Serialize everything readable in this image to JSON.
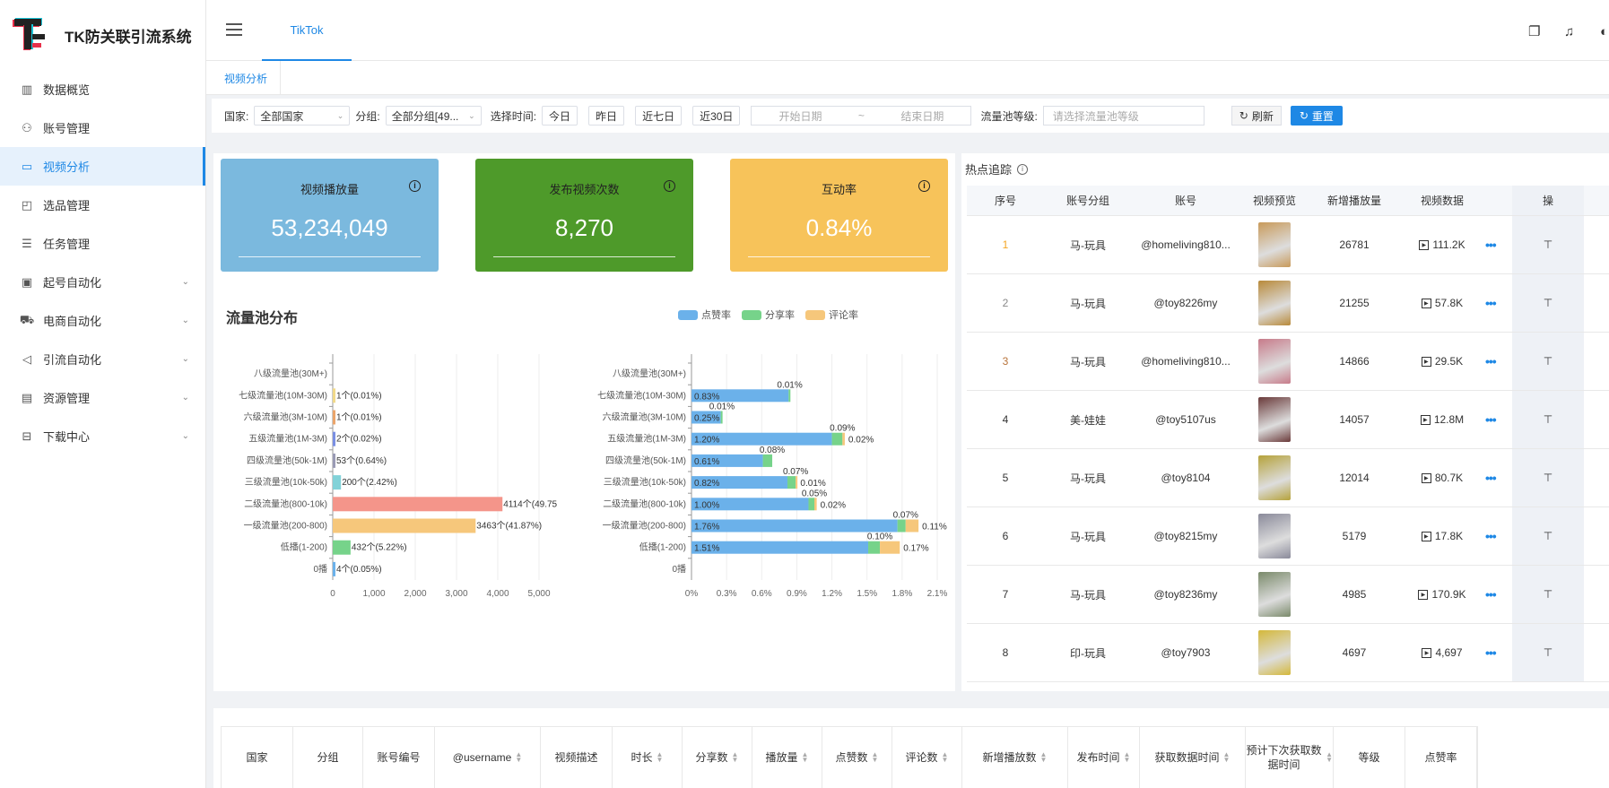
{
  "app": {
    "title": "TK防关联引流系统"
  },
  "sidebar": {
    "items": [
      {
        "label": "数据概览",
        "icon": "bar-chart-icon",
        "glyph": "▥",
        "expandable": false,
        "active": false
      },
      {
        "label": "账号管理",
        "icon": "user-group-icon",
        "glyph": "⚇",
        "expandable": false,
        "active": false
      },
      {
        "label": "视频分析",
        "icon": "video-icon",
        "glyph": "▭",
        "expandable": false,
        "active": true
      },
      {
        "label": "选品管理",
        "icon": "bag-icon",
        "glyph": "◰",
        "expandable": false,
        "active": false
      },
      {
        "label": "任务管理",
        "icon": "list-icon",
        "glyph": "☰",
        "expandable": false,
        "active": false
      },
      {
        "label": "起号自动化",
        "icon": "monitor-icon",
        "glyph": "▣",
        "expandable": true,
        "active": false
      },
      {
        "label": "电商自动化",
        "icon": "cart-icon",
        "glyph": "⛟",
        "expandable": true,
        "active": false
      },
      {
        "label": "引流自动化",
        "icon": "megaphone-icon",
        "glyph": "◁",
        "expandable": true,
        "active": false
      },
      {
        "label": "资源管理",
        "icon": "book-icon",
        "glyph": "▤",
        "expandable": true,
        "active": false
      },
      {
        "label": "下载中心",
        "icon": "inbox-icon",
        "glyph": "⊟",
        "expandable": true,
        "active": false
      }
    ]
  },
  "header": {
    "tab": "TikTok"
  },
  "subtabs": {
    "active": "视频分析"
  },
  "filters": {
    "country_label": "国家:",
    "country_value": "全部国家",
    "group_label": "分组:",
    "group_value": "全部分组[49...",
    "time_label": "选择时间:",
    "today": "今日",
    "yesterday": "昨日",
    "last7": "近七日",
    "last30": "近30日",
    "start_placeholder": "开始日期",
    "range_sep": "~",
    "end_placeholder": "结束日期",
    "pool_label": "流量池等级:",
    "pool_placeholder": "请选择流量池等级",
    "refresh": "刷新",
    "reset": "重置"
  },
  "kpis": [
    {
      "title": "视频播放量",
      "value": "53,234,049",
      "color": "#7bb9de"
    },
    {
      "title": "发布视频次数",
      "value": "8,270",
      "color": "#4e9a2a"
    },
    {
      "title": "互动率",
      "value": "0.84%",
      "color": "#f7c35a"
    }
  ],
  "distribution": {
    "title": "流量池分布",
    "legend": [
      {
        "name": "点赞率",
        "color": "#6bb1ea"
      },
      {
        "name": "分享率",
        "color": "#76d38a"
      },
      {
        "name": "评论率",
        "color": "#f6c77b"
      }
    ]
  },
  "chart_data": [
    {
      "type": "bar",
      "orientation": "horizontal",
      "categories": [
        "0播",
        "低播(1-200)",
        "一级流量池(200-800)",
        "二级流量池(800-10k)",
        "三级流量池(10k-50k)",
        "四级流量池(50k-1M)",
        "五级流量池(1M-3M)",
        "六级流量池(3M-10M)",
        "七级流量池(10M-30M)",
        "八级流量池(30M+)"
      ],
      "values": [
        4,
        432,
        3463,
        4114,
        200,
        53,
        2,
        1,
        1,
        0
      ],
      "labels": [
        "4个(0.05%)",
        "432个(5.22%)",
        "3463个(41.87%)",
        "4114个(49.75",
        "200个(2.42%)",
        "53个(0.64%)",
        "2个(0.02%)",
        "1个(0.01%)",
        "1个(0.01%)",
        ""
      ],
      "colors": [
        "#6bb1ea",
        "#76d38a",
        "#f6c77b",
        "#f4958a",
        "#82d2d8",
        "#9a9bb5",
        "#7a8fe3",
        "#eba56b",
        "#f1d98a",
        "#cccccc"
      ],
      "xticks": [
        "0",
        "1,000",
        "2,000",
        "3,000",
        "4,000",
        "5,000"
      ],
      "xlim": [
        0,
        5000
      ]
    },
    {
      "type": "bar",
      "orientation": "horizontal",
      "stacked": true,
      "categories": [
        "0播",
        "低播(1-200)",
        "一级流量池(200-800)",
        "二级流量池(800-10k)",
        "三级流量池(10k-50k)",
        "四级流量池(50k-1M)",
        "五级流量池(1M-3M)",
        "六级流量池(3M-10M)",
        "七级流量池(10M-30M)",
        "八级流量池(30M+)"
      ],
      "series": [
        {
          "name": "点赞率",
          "values": [
            0,
            1.51,
            1.76,
            1.0,
            0.82,
            0.61,
            1.2,
            0.25,
            0.83,
            0
          ],
          "labels": [
            "",
            "1.51%",
            "1.76%",
            "1.00%",
            "0.82%",
            "0.61%",
            "1.20%",
            "0.25%",
            "0.83%",
            ""
          ]
        },
        {
          "name": "分享率",
          "values": [
            0,
            0.1,
            0.07,
            0.05,
            0.07,
            0.08,
            0.09,
            0.01,
            0.01,
            0
          ],
          "labels": [
            "",
            "0.10%",
            "0.07%",
            "0.05%",
            "0.07%",
            "0.08%",
            "0.09%",
            "0.01%",
            "0.01%",
            ""
          ]
        },
        {
          "name": "评论率",
          "values": [
            0,
            0.17,
            0.11,
            0.02,
            0.01,
            0,
            0.02,
            0,
            0,
            0
          ],
          "labels": [
            "",
            "0.17%",
            "0.11%",
            "0.02%",
            "0.01%",
            "",
            "0.02%",
            "",
            "",
            ""
          ]
        }
      ],
      "xticks": [
        "0%",
        "0.3%",
        "0.6%",
        "0.9%",
        "1.2%",
        "1.5%",
        "1.8%",
        "2.1%"
      ],
      "xlim": [
        0,
        2.1
      ]
    }
  ],
  "hot": {
    "title": "热点追踪",
    "headers": [
      "序号",
      "账号分组",
      "账号",
      "视频预览",
      "新增播放量",
      "视频数据",
      "操"
    ],
    "rows": [
      {
        "idx": "1",
        "group": "马-玩具",
        "account": "@homeliving810...",
        "views": "26781",
        "data": "111.2K",
        "thumb": "#c89a5a",
        "idxColor": "#f5a623"
      },
      {
        "idx": "2",
        "group": "马-玩具",
        "account": "@toy8226my",
        "views": "21255",
        "data": "57.8K",
        "thumb": "#b88a3a",
        "idxColor": "#888888"
      },
      {
        "idx": "3",
        "group": "马-玩具",
        "account": "@homeliving810...",
        "views": "14866",
        "data": "29.5K",
        "thumb": "#c77b8a",
        "idxColor": "#b8733a"
      },
      {
        "idx": "4",
        "group": "美-娃娃",
        "account": "@toy5107us",
        "views": "14057",
        "data": "12.8M",
        "thumb": "#6a3a3a",
        "idxColor": "#333333"
      },
      {
        "idx": "5",
        "group": "马-玩具",
        "account": "@toy8104",
        "views": "12014",
        "data": "80.7K",
        "thumb": "#b5a23a",
        "idxColor": "#333333"
      },
      {
        "idx": "6",
        "group": "马-玩具",
        "account": "@toy8215my",
        "views": "5179",
        "data": "17.8K",
        "thumb": "#8a8a9a",
        "idxColor": "#333333"
      },
      {
        "idx": "7",
        "group": "马-玩具",
        "account": "@toy8236my",
        "views": "4985",
        "data": "170.9K",
        "thumb": "#7a8a6a",
        "idxColor": "#333333"
      },
      {
        "idx": "8",
        "group": "印-玩具",
        "account": "@toy7903",
        "views": "4697",
        "data": "4,697",
        "thumb": "#d4b83a",
        "idxColor": "#333333"
      }
    ]
  },
  "bottom_table": {
    "headers": [
      {
        "label": "国家",
        "w": 80,
        "sort": false
      },
      {
        "label": "分组",
        "w": 78,
        "sort": false
      },
      {
        "label": "账号编号",
        "w": 80,
        "sort": false
      },
      {
        "label": "@username",
        "w": 118,
        "sort": true
      },
      {
        "label": "视频描述",
        "w": 80,
        "sort": false
      },
      {
        "label": "时长",
        "w": 78,
        "sort": true
      },
      {
        "label": "分享数",
        "w": 78,
        "sort": true
      },
      {
        "label": "播放量",
        "w": 78,
        "sort": true
      },
      {
        "label": "点赞数",
        "w": 78,
        "sort": true
      },
      {
        "label": "评论数",
        "w": 78,
        "sort": true
      },
      {
        "label": "新增播放数",
        "w": 118,
        "sort": true
      },
      {
        "label": "发布时间",
        "w": 80,
        "sort": true
      },
      {
        "label": "获取数据时间",
        "w": 118,
        "sort": true
      },
      {
        "label": "预计下次获取数据时间",
        "w": 98,
        "sort": true
      },
      {
        "label": "等级",
        "w": 80,
        "sort": false
      },
      {
        "label": "点赞率",
        "w": 80,
        "sort": false
      }
    ]
  }
}
